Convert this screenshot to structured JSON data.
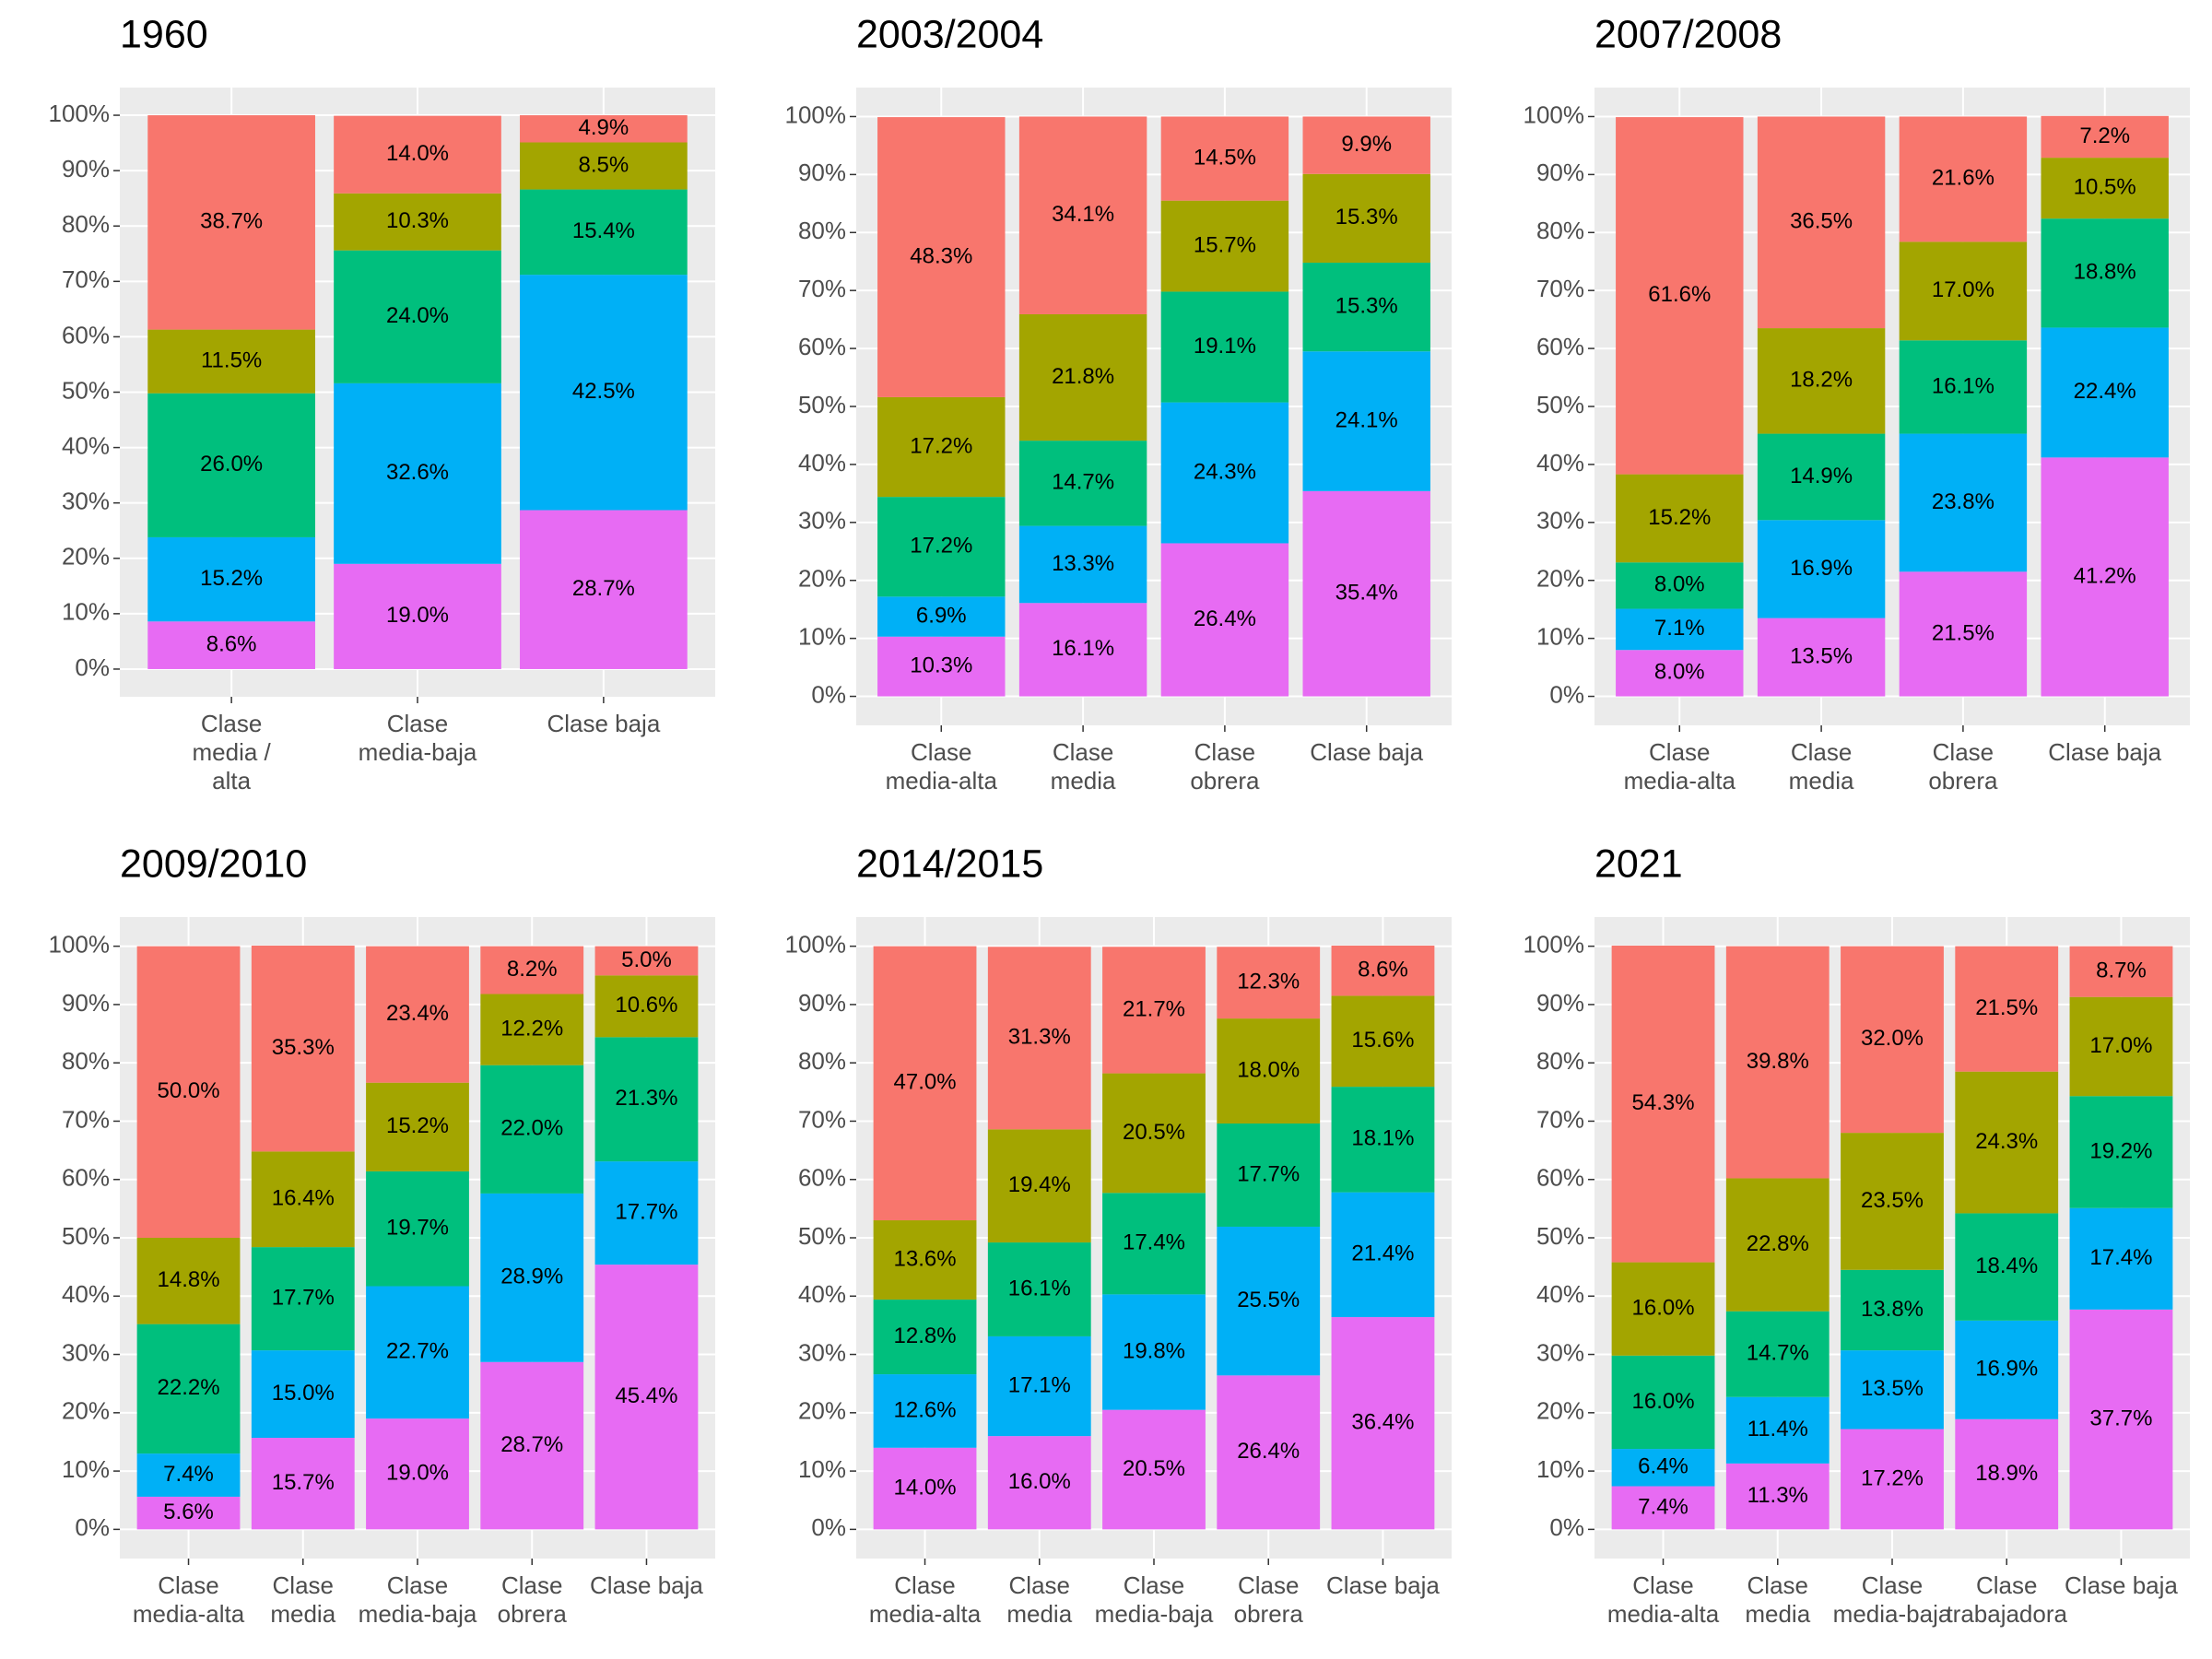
{
  "chart_data": [
    {
      "type": "bar",
      "stacked": true,
      "title": "1960",
      "categories": [
        "Clase\nmedia /\nalta",
        "Clase\nmedia-baja",
        "Clase baja"
      ],
      "series": [
        {
          "color": "#E76BF3",
          "values": [
            8.6,
            19.0,
            28.7
          ],
          "value_labels": [
            "8.6%",
            "19.0%",
            "28.7%"
          ]
        },
        {
          "color": "#00B0F6",
          "values": [
            15.2,
            32.6,
            42.5
          ],
          "value_labels": [
            "15.2%",
            "32.6%",
            "42.5%"
          ]
        },
        {
          "color": "#00BF7D",
          "values": [
            26.0,
            24.0,
            15.4
          ],
          "value_labels": [
            "26.0%",
            "24.0%",
            "15.4%"
          ]
        },
        {
          "color": "#A3A500",
          "values": [
            11.5,
            10.3,
            8.5
          ],
          "value_labels": [
            "11.5%",
            "10.3%",
            "8.5%"
          ]
        },
        {
          "color": "#F8766D",
          "values": [
            38.7,
            14.0,
            4.9
          ],
          "value_labels": [
            "38.7%",
            "14.0%",
            "4.9%"
          ]
        }
      ],
      "ylim": [
        -5,
        105
      ],
      "yticks": [
        {
          "value": 0,
          "label": "0%"
        },
        {
          "value": 10,
          "label": "10%"
        },
        {
          "value": 20,
          "label": "20%"
        },
        {
          "value": 30,
          "label": "30%"
        },
        {
          "value": 40,
          "label": "40%"
        },
        {
          "value": 50,
          "label": "50%"
        },
        {
          "value": 60,
          "label": "60%"
        },
        {
          "value": 70,
          "label": "70%"
        },
        {
          "value": 80,
          "label": "80%"
        },
        {
          "value": 90,
          "label": "90%"
        },
        {
          "value": 100,
          "label": "100%"
        }
      ],
      "grid": true
    },
    {
      "type": "bar",
      "stacked": true,
      "title": "2003/2004",
      "categories": [
        "Clase\nmedia-alta",
        "Clase\nmedia",
        "Clase\nobrera",
        "Clase baja"
      ],
      "series": [
        {
          "color": "#E76BF3",
          "values": [
            10.3,
            16.1,
            26.4,
            35.4
          ],
          "value_labels": [
            "10.3%",
            "16.1%",
            "26.4%",
            "35.4%"
          ]
        },
        {
          "color": "#00B0F6",
          "values": [
            6.9,
            13.3,
            24.3,
            24.1
          ],
          "value_labels": [
            "6.9%",
            "13.3%",
            "24.3%",
            "24.1%"
          ]
        },
        {
          "color": "#00BF7D",
          "values": [
            17.2,
            14.7,
            19.1,
            15.3
          ],
          "value_labels": [
            "17.2%",
            "14.7%",
            "19.1%",
            "15.3%"
          ]
        },
        {
          "color": "#A3A500",
          "values": [
            17.2,
            21.8,
            15.7,
            15.3
          ],
          "value_labels": [
            "17.2%",
            "21.8%",
            "15.7%",
            "15.3%"
          ]
        },
        {
          "color": "#F8766D",
          "values": [
            48.3,
            34.1,
            14.5,
            9.9
          ],
          "value_labels": [
            "48.3%",
            "34.1%",
            "14.5%",
            "9.9%"
          ]
        }
      ],
      "ylim": [
        -5,
        105
      ],
      "yticks": [
        {
          "value": 0,
          "label": "0%"
        },
        {
          "value": 10,
          "label": "10%"
        },
        {
          "value": 20,
          "label": "20%"
        },
        {
          "value": 30,
          "label": "30%"
        },
        {
          "value": 40,
          "label": "40%"
        },
        {
          "value": 50,
          "label": "50%"
        },
        {
          "value": 60,
          "label": "60%"
        },
        {
          "value": 70,
          "label": "70%"
        },
        {
          "value": 80,
          "label": "80%"
        },
        {
          "value": 90,
          "label": "90%"
        },
        {
          "value": 100,
          "label": "100%"
        }
      ],
      "grid": true
    },
    {
      "type": "bar",
      "stacked": true,
      "title": "2007/2008",
      "categories": [
        "Clase\nmedia-alta",
        "Clase\nmedia",
        "Clase\nobrera",
        "Clase baja"
      ],
      "series": [
        {
          "color": "#E76BF3",
          "values": [
            8.0,
            13.5,
            21.5,
            41.2
          ],
          "value_labels": [
            "8.0%",
            "13.5%",
            "21.5%",
            "41.2%"
          ]
        },
        {
          "color": "#00B0F6",
          "values": [
            7.1,
            16.9,
            23.8,
            22.4
          ],
          "value_labels": [
            "7.1%",
            "16.9%",
            "23.8%",
            "22.4%"
          ]
        },
        {
          "color": "#00BF7D",
          "values": [
            8.0,
            14.9,
            16.1,
            18.8
          ],
          "value_labels": [
            "8.0%",
            "14.9%",
            "16.1%",
            "18.8%"
          ]
        },
        {
          "color": "#A3A500",
          "values": [
            15.2,
            18.2,
            17.0,
            10.5
          ],
          "value_labels": [
            "15.2%",
            "18.2%",
            "17.0%",
            "10.5%"
          ]
        },
        {
          "color": "#F8766D",
          "values": [
            61.6,
            36.5,
            21.6,
            7.2
          ],
          "value_labels": [
            "61.6%",
            "36.5%",
            "21.6%",
            "7.2%"
          ]
        }
      ],
      "ylim": [
        -5,
        105
      ],
      "yticks": [
        {
          "value": 0,
          "label": "0%"
        },
        {
          "value": 10,
          "label": "10%"
        },
        {
          "value": 20,
          "label": "20%"
        },
        {
          "value": 30,
          "label": "30%"
        },
        {
          "value": 40,
          "label": "40%"
        },
        {
          "value": 50,
          "label": "50%"
        },
        {
          "value": 60,
          "label": "60%"
        },
        {
          "value": 70,
          "label": "70%"
        },
        {
          "value": 80,
          "label": "80%"
        },
        {
          "value": 90,
          "label": "90%"
        },
        {
          "value": 100,
          "label": "100%"
        }
      ],
      "grid": true
    },
    {
      "type": "bar",
      "stacked": true,
      "title": "2009/2010",
      "categories": [
        "Clase\nmedia-alta",
        "Clase\nmedia",
        "Clase\nmedia-baja",
        "Clase\nobrera",
        "Clase baja"
      ],
      "series": [
        {
          "color": "#E76BF3",
          "values": [
            5.6,
            15.7,
            19.0,
            28.7,
            45.4
          ],
          "value_labels": [
            "5.6%",
            "15.7%",
            "19.0%",
            "28.7%",
            "45.4%"
          ]
        },
        {
          "color": "#00B0F6",
          "values": [
            7.4,
            15.0,
            22.7,
            28.9,
            17.7
          ],
          "value_labels": [
            "7.4%",
            "15.0%",
            "22.7%",
            "28.9%",
            "17.7%"
          ]
        },
        {
          "color": "#00BF7D",
          "values": [
            22.2,
            17.7,
            19.7,
            22.0,
            21.3
          ],
          "value_labels": [
            "22.2%",
            "17.7%",
            "19.7%",
            "22.0%",
            "21.3%"
          ]
        },
        {
          "color": "#A3A500",
          "values": [
            14.8,
            16.4,
            15.2,
            12.2,
            10.6
          ],
          "value_labels": [
            "14.8%",
            "16.4%",
            "15.2%",
            "12.2%",
            "10.6%"
          ]
        },
        {
          "color": "#F8766D",
          "values": [
            50.0,
            35.3,
            23.4,
            8.2,
            5.0
          ],
          "value_labels": [
            "50.0%",
            "35.3%",
            "23.4%",
            "8.2%",
            "5.0%"
          ]
        }
      ],
      "ylim": [
        -5,
        105
      ],
      "yticks": [
        {
          "value": 0,
          "label": "0%"
        },
        {
          "value": 10,
          "label": "10%"
        },
        {
          "value": 20,
          "label": "20%"
        },
        {
          "value": 30,
          "label": "30%"
        },
        {
          "value": 40,
          "label": "40%"
        },
        {
          "value": 50,
          "label": "50%"
        },
        {
          "value": 60,
          "label": "60%"
        },
        {
          "value": 70,
          "label": "70%"
        },
        {
          "value": 80,
          "label": "80%"
        },
        {
          "value": 90,
          "label": "90%"
        },
        {
          "value": 100,
          "label": "100%"
        }
      ],
      "grid": true
    },
    {
      "type": "bar",
      "stacked": true,
      "title": "2014/2015",
      "categories": [
        "Clase\nmedia-alta",
        "Clase\nmedia",
        "Clase\nmedia-baja",
        "Clase\nobrera",
        "Clase baja"
      ],
      "series": [
        {
          "color": "#E76BF3",
          "values": [
            14.0,
            16.0,
            20.5,
            26.4,
            36.4
          ],
          "value_labels": [
            "14.0%",
            "16.0%",
            "20.5%",
            "26.4%",
            "36.4%"
          ]
        },
        {
          "color": "#00B0F6",
          "values": [
            12.6,
            17.1,
            19.8,
            25.5,
            21.4
          ],
          "value_labels": [
            "12.6%",
            "17.1%",
            "19.8%",
            "25.5%",
            "21.4%"
          ]
        },
        {
          "color": "#00BF7D",
          "values": [
            12.8,
            16.1,
            17.4,
            17.7,
            18.1
          ],
          "value_labels": [
            "12.8%",
            "16.1%",
            "17.4%",
            "17.7%",
            "18.1%"
          ]
        },
        {
          "color": "#A3A500",
          "values": [
            13.6,
            19.4,
            20.5,
            18.0,
            15.6
          ],
          "value_labels": [
            "13.6%",
            "19.4%",
            "20.5%",
            "18.0%",
            "15.6%"
          ]
        },
        {
          "color": "#F8766D",
          "values": [
            47.0,
            31.3,
            21.7,
            12.3,
            8.6
          ],
          "value_labels": [
            "47.0%",
            "31.3%",
            "21.7%",
            "12.3%",
            "8.6%"
          ]
        }
      ],
      "ylim": [
        -5,
        105
      ],
      "yticks": [
        {
          "value": 0,
          "label": "0%"
        },
        {
          "value": 10,
          "label": "10%"
        },
        {
          "value": 20,
          "label": "20%"
        },
        {
          "value": 30,
          "label": "30%"
        },
        {
          "value": 40,
          "label": "40%"
        },
        {
          "value": 50,
          "label": "50%"
        },
        {
          "value": 60,
          "label": "60%"
        },
        {
          "value": 70,
          "label": "70%"
        },
        {
          "value": 80,
          "label": "80%"
        },
        {
          "value": 90,
          "label": "90%"
        },
        {
          "value": 100,
          "label": "100%"
        }
      ],
      "grid": true
    },
    {
      "type": "bar",
      "stacked": true,
      "title": "2021",
      "categories": [
        "Clase\nmedia-alta",
        "Clase\nmedia",
        "Clase\nmedia-baja",
        "Clase\ntrabajadora",
        "Clase baja"
      ],
      "series": [
        {
          "color": "#E76BF3",
          "values": [
            7.4,
            11.3,
            17.2,
            18.9,
            37.7
          ],
          "value_labels": [
            "7.4%",
            "11.3%",
            "17.2%",
            "18.9%",
            "37.7%"
          ]
        },
        {
          "color": "#00B0F6",
          "values": [
            6.4,
            11.4,
            13.5,
            16.9,
            17.4
          ],
          "value_labels": [
            "6.4%",
            "11.4%",
            "13.5%",
            "16.9%",
            "17.4%"
          ]
        },
        {
          "color": "#00BF7D",
          "values": [
            16.0,
            14.7,
            13.8,
            18.4,
            19.2
          ],
          "value_labels": [
            "16.0%",
            "14.7%",
            "13.8%",
            "18.4%",
            "19.2%"
          ]
        },
        {
          "color": "#A3A500",
          "values": [
            16.0,
            22.8,
            23.5,
            24.3,
            17.0
          ],
          "value_labels": [
            "16.0%",
            "22.8%",
            "23.5%",
            "24.3%",
            "17.0%"
          ]
        },
        {
          "color": "#F8766D",
          "values": [
            54.3,
            39.8,
            32.0,
            21.5,
            8.7
          ],
          "value_labels": [
            "54.3%",
            "39.8%",
            "32.0%",
            "21.5%",
            "8.7%"
          ]
        }
      ],
      "ylim": [
        -5,
        105
      ],
      "yticks": [
        {
          "value": 0,
          "label": "0%"
        },
        {
          "value": 10,
          "label": "10%"
        },
        {
          "value": 20,
          "label": "20%"
        },
        {
          "value": 30,
          "label": "30%"
        },
        {
          "value": 40,
          "label": "40%"
        },
        {
          "value": 50,
          "label": "50%"
        },
        {
          "value": 60,
          "label": "60%"
        },
        {
          "value": 70,
          "label": "70%"
        },
        {
          "value": 80,
          "label": "80%"
        },
        {
          "value": 90,
          "label": "90%"
        },
        {
          "value": 100,
          "label": "100%"
        }
      ],
      "grid": true
    }
  ]
}
